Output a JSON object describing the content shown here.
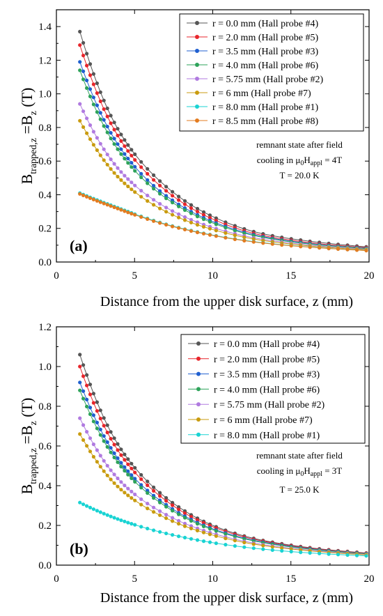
{
  "chart_data": [
    {
      "type": "line",
      "panel_label": "(a)",
      "xlabel": "Distance from the upper disk surface, z (mm)",
      "ylabel": {
        "main": "B",
        "sub": "trapped,z",
        "mid": " =B",
        "sub2": "z",
        "unit": " (T)"
      },
      "xlim": [
        0,
        20
      ],
      "ylim": [
        0,
        1.5
      ],
      "xticks": [
        "0",
        "5",
        "10",
        "15",
        "20"
      ],
      "yticks": [
        "0.0",
        "0.2",
        "0.4",
        "0.6",
        "0.8",
        "1.0",
        "1.2",
        "1.4"
      ],
      "legend_position": "top-right",
      "annotations": {
        "line1": "remnant state after field",
        "line2_pre": "cooling in μ",
        "line2_sub1": "0",
        "line2_mid": "H",
        "line2_sub2": "appl",
        "line2_post": " = 4T",
        "line3": "T = 20.0 K"
      },
      "series": [
        {
          "name": "r = 0.0 mm (Hall probe #4)",
          "color": "#555555",
          "values": [
            1.37,
            0.78,
            0.45,
            0.27,
            0.172,
            0.12,
            0.089
          ]
        },
        {
          "name": "r = 2.0 mm (Hall probe #5)",
          "color": "#e8252b",
          "values": [
            1.29,
            0.74,
            0.425,
            0.255,
            0.162,
            0.112,
            0.084
          ]
        },
        {
          "name": "r = 3.5 mm (Hall probe #3)",
          "color": "#1f5fd0",
          "values": [
            1.19,
            0.69,
            0.395,
            0.24,
            0.155,
            0.107,
            0.081
          ]
        },
        {
          "name": "r = 4.0 mm (Hall probe #6)",
          "color": "#2ea35a",
          "values": [
            1.14,
            0.66,
            0.38,
            0.232,
            0.15,
            0.104,
            0.079
          ]
        },
        {
          "name": "r = 5.75 mm (Hall probe #2)",
          "color": "#b07ae0",
          "values": [
            0.94,
            0.55,
            0.325,
            0.205,
            0.138,
            0.098,
            0.075
          ]
        },
        {
          "name": "r = 6 mm (Hall probe #7)",
          "color": "#c99b0f",
          "values": [
            0.84,
            0.5,
            0.3,
            0.193,
            0.131,
            0.093,
            0.072
          ]
        },
        {
          "name": "r = 8.0 mm (Hall probe #1)",
          "color": "#19d3d3",
          "values": [
            0.41,
            0.32,
            0.225,
            0.16,
            0.117,
            0.087,
            0.068
          ]
        },
        {
          "name": "r = 8.5 mm (Hall probe #8)",
          "color": "#e37b1f",
          "values": [
            0.405,
            0.315,
            0.222,
            0.158,
            0.115,
            0.086,
            0.067
          ]
        }
      ],
      "x": [
        1.5,
        4,
        7,
        10,
        13,
        16.5,
        20
      ]
    },
    {
      "type": "line",
      "panel_label": "(b)",
      "xlabel": "Distance from the upper disk surface, z (mm)",
      "ylabel": {
        "main": "B",
        "sub": "trapped,z",
        "mid": " =B",
        "sub2": "z",
        "unit": " (T)"
      },
      "xlim": [
        0,
        20
      ],
      "ylim": [
        0,
        1.2
      ],
      "xticks": [
        "0",
        "5",
        "10",
        "15",
        "20"
      ],
      "yticks": [
        "0.0",
        "0.2",
        "0.4",
        "0.6",
        "0.8",
        "1.0",
        "1.2"
      ],
      "legend_position": "top-right",
      "annotations": {
        "line1": "remnant state after field",
        "line2_pre": "cooling in μ",
        "line2_sub1": "0",
        "line2_mid": "H",
        "line2_sub2": "appl",
        "line2_post": " = 3T",
        "line3": "T = 25.0 K"
      },
      "series": [
        {
          "name": "r = 0.0 mm (Hall probe #4)",
          "color": "#555555",
          "values": [
            1.06,
            0.6,
            0.34,
            0.2,
            0.128,
            0.085,
            0.06
          ]
        },
        {
          "name": "r = 2.0 mm (Hall probe #5)",
          "color": "#e8252b",
          "values": [
            1.0,
            0.57,
            0.325,
            0.193,
            0.124,
            0.083,
            0.059
          ]
        },
        {
          "name": "r = 3.5 mm (Hall probe #3)",
          "color": "#1f5fd0",
          "values": [
            0.92,
            0.53,
            0.305,
            0.183,
            0.119,
            0.08,
            0.057
          ]
        },
        {
          "name": "r = 4.0 mm (Hall probe #6)",
          "color": "#2ea35a",
          "values": [
            0.88,
            0.51,
            0.295,
            0.178,
            0.116,
            0.078,
            0.056
          ]
        },
        {
          "name": "r = 5.75 mm (Hall probe #2)",
          "color": "#b07ae0",
          "values": [
            0.74,
            0.43,
            0.255,
            0.16,
            0.106,
            0.073,
            0.053
          ]
        },
        {
          "name": "r = 6 mm (Hall probe #7)",
          "color": "#c99b0f",
          "values": [
            0.66,
            0.39,
            0.237,
            0.151,
            0.101,
            0.07,
            0.051
          ]
        },
        {
          "name": "r = 8.0 mm (Hall probe #1)",
          "color": "#19d3d3",
          "values": [
            0.315,
            0.23,
            0.16,
            0.113,
            0.082,
            0.06,
            0.046
          ]
        }
      ],
      "x": [
        1.5,
        4,
        7,
        10,
        13,
        16.5,
        20
      ]
    }
  ]
}
